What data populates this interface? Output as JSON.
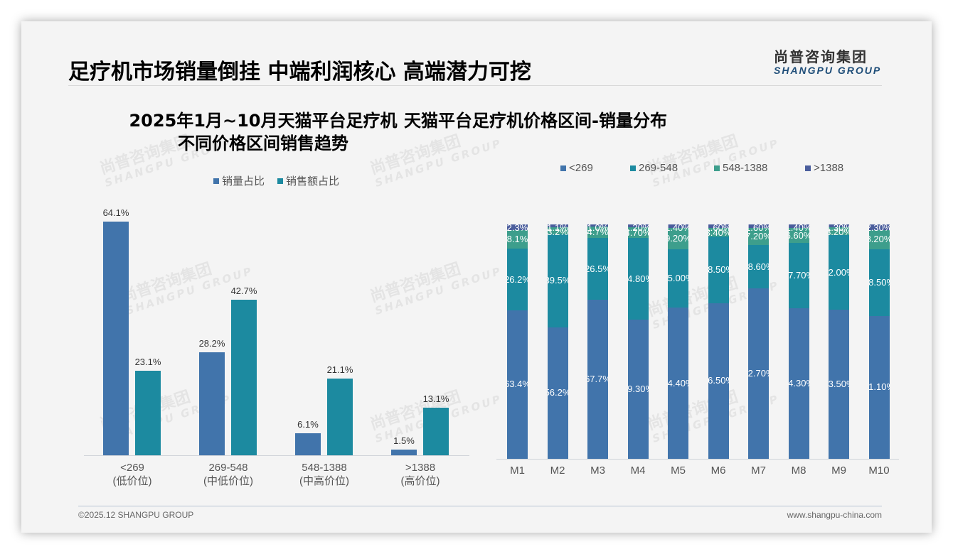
{
  "header": {
    "title": "足疗机市场销量倒挂 中端利润核心 高端潜力可挖",
    "logo_cn": "尚普咨询集团",
    "logo_en": "SHANGPU GROUP"
  },
  "footer": {
    "copyright": "©2025.12 SHANGPU GROUP",
    "website": "www.shangpu-china.com"
  },
  "watermark": {
    "cn": "尚普咨询集团",
    "en": "SHANGPU GROUP"
  },
  "colors": {
    "sales_volume": "#4174ab",
    "sales_amount": "#1c8aa0",
    "lt269": "#4174ab",
    "r269_548": "#1c8aa0",
    "r548_1388": "#3d9e8c",
    "gt1388": "#4a5d9c"
  },
  "left_chart": {
    "title_line1": "2025年1月~10月天猫平台足疗机",
    "title_line2": "不同价格区间销售趋势",
    "legend": [
      "销量占比",
      "销售额占比"
    ]
  },
  "right_chart": {
    "title": "天猫平台足疗机价格区间-销量分布",
    "legend": [
      "<269",
      "269-548",
      "548-1388",
      ">1388"
    ]
  },
  "chart_data": [
    {
      "type": "bar",
      "title": "2025年1月~10月天猫平台足疗机不同价格区间销售趋势",
      "categories": [
        "<269 (低价位)",
        "269-548 (中低价位)",
        "548-1388 (中高价位)",
        ">1388 (高价位)"
      ],
      "category_lines": [
        [
          "<269",
          "(低价位)"
        ],
        [
          "269-548",
          "(中低价位)"
        ],
        [
          "548-1388",
          "(中高价位)"
        ],
        [
          ">1388",
          "(高价位)"
        ]
      ],
      "series": [
        {
          "name": "销量占比",
          "values": [
            64.1,
            28.2,
            6.1,
            1.5
          ],
          "labels": [
            "64.1%",
            "28.2%",
            "6.1%",
            "1.5%"
          ]
        },
        {
          "name": "销售额占比",
          "values": [
            23.1,
            42.7,
            21.1,
            13.1
          ],
          "labels": [
            "23.1%",
            "42.7%",
            "21.1%",
            "13.1%"
          ]
        }
      ],
      "xlabel": "",
      "ylabel": "",
      "ylim": [
        0,
        70
      ],
      "grid": false,
      "legend_position": "top"
    },
    {
      "type": "bar",
      "stacked": true,
      "title": "天猫平台足疗机价格区间-销量分布",
      "categories": [
        "M1",
        "M2",
        "M3",
        "M4",
        "M5",
        "M6",
        "M7",
        "M8",
        "M9",
        "M10"
      ],
      "series": [
        {
          "name": "<269",
          "values": [
            63.4,
            56.2,
            67.7,
            59.3,
            64.4,
            66.5,
            72.7,
            64.3,
            63.5,
            61.1
          ],
          "labels": [
            "63.4%",
            "56.2%",
            "67.7%",
            "59.30%",
            "64.40%",
            "66.50%",
            "72.70%",
            "64.30%",
            "63.50%",
            "61.10%"
          ]
        },
        {
          "name": "269-548",
          "values": [
            26.2,
            39.5,
            26.5,
            34.8,
            25.0,
            28.5,
            18.6,
            27.7,
            32.0,
            28.5
          ],
          "labels": [
            "26.2%",
            "39.5%",
            "26.5%",
            "34.80%",
            "25.00%",
            "28.50%",
            "18.60%",
            "27.70%",
            "32.00%",
            "28.50%"
          ]
        },
        {
          "name": "548-1388",
          "values": [
            8.1,
            3.2,
            4.7,
            4.7,
            9.2,
            3.4,
            7.2,
            6.6,
            3.2,
            8.2
          ],
          "labels": [
            "8.1%",
            "3.2%",
            "4.7%",
            "4.70%",
            "9.20%",
            "3.40%",
            "7.20%",
            "6.60%",
            "3.20%",
            "8.20%"
          ]
        },
        {
          "name": ">1388",
          "values": [
            2.3,
            1.1,
            1.0,
            1.2,
            1.4,
            1.6,
            1.6,
            1.4,
            1.3,
            2.3
          ],
          "labels": [
            "2.3%",
            "1.1%",
            "1.0%",
            "1.20%",
            "1.40%",
            "1.60%",
            "1.60%",
            "1.40%",
            "1.30%",
            "2.30%"
          ]
        }
      ],
      "xlabel": "",
      "ylabel": "",
      "ylim": [
        0,
        100
      ],
      "grid": false,
      "legend_position": "top"
    }
  ]
}
